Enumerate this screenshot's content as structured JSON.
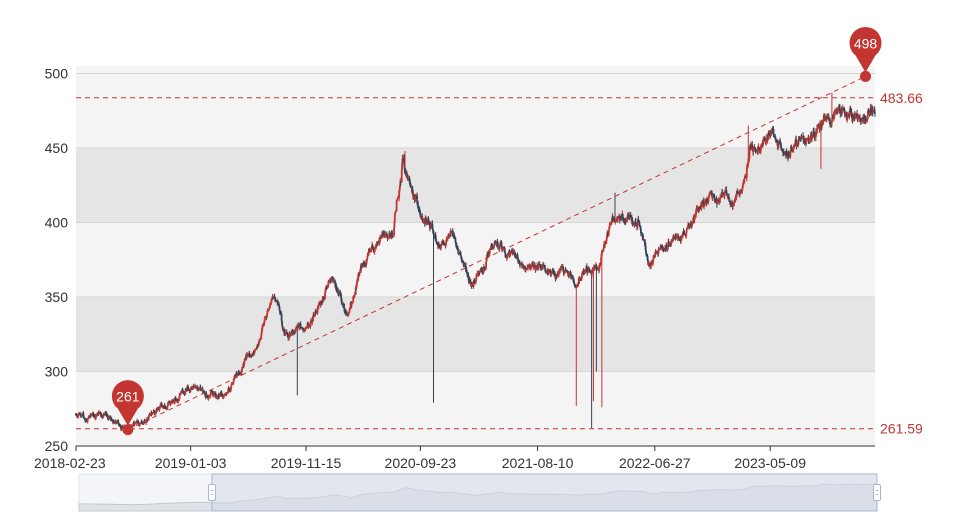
{
  "chart_data": {
    "type": "candlestick",
    "colors": {
      "up": "#c23531",
      "down": "#2f4554",
      "band_light": "#f4f4f4",
      "band_dark": "#e5e5e5",
      "markline": "#c23531",
      "axis": "#333333",
      "datazoom_fill": "#d3dbe7",
      "datazoom_border": "#a7b7cc"
    },
    "xaxis": {
      "ticks": [
        "2018-02-23",
        "2019-01-03",
        "2019-11-15",
        "2020-09-23",
        "2021-08-10",
        "2022-06-27",
        "2023-05-09"
      ],
      "start": "2018-02-23",
      "end": "2024-02-20"
    },
    "yaxis": {
      "min": 250,
      "max": 505,
      "ticks": [
        250,
        300,
        350,
        400,
        450,
        500
      ]
    },
    "key_points": [
      [
        "2018-02-23",
        272
      ],
      [
        "2018-05-15",
        269
      ],
      [
        "2018-07-15",
        263
      ],
      [
        "2018-08-20",
        266
      ],
      [
        "2018-10-25",
        278
      ],
      [
        "2018-12-15",
        285
      ],
      [
        "2019-01-20",
        290
      ],
      [
        "2019-02-20",
        283
      ],
      [
        "2019-04-10",
        282
      ],
      [
        "2019-05-15",
        300
      ],
      [
        "2019-07-01",
        318
      ],
      [
        "2019-08-20",
        350
      ],
      [
        "2019-09-20",
        325
      ],
      [
        "2019-11-15",
        330
      ],
      [
        "2019-12-25",
        345
      ],
      [
        "2020-01-25",
        365
      ],
      [
        "2020-03-10",
        335
      ],
      [
        "2020-04-15",
        370
      ],
      [
        "2020-05-25",
        385
      ],
      [
        "2020-07-10",
        395
      ],
      [
        "2020-08-05",
        440
      ],
      [
        "2020-08-20",
        425
      ],
      [
        "2020-09-15",
        410
      ],
      [
        "2020-10-15",
        400
      ],
      [
        "2020-11-15",
        385
      ],
      [
        "2020-12-15",
        390
      ],
      [
        "2021-01-15",
        375
      ],
      [
        "2021-02-15",
        358
      ],
      [
        "2021-03-15",
        372
      ],
      [
        "2021-04-20",
        390
      ],
      [
        "2021-05-20",
        375
      ],
      [
        "2021-06-20",
        375
      ],
      [
        "2021-07-20",
        370
      ],
      [
        "2021-08-25",
        372
      ],
      [
        "2021-09-25",
        365
      ],
      [
        "2021-10-25",
        368
      ],
      [
        "2021-11-25",
        362
      ],
      [
        "2021-12-25",
        368
      ],
      [
        "2022-01-25",
        370
      ],
      [
        "2022-02-25",
        395
      ],
      [
        "2022-03-15",
        405
      ],
      [
        "2022-04-15",
        402
      ],
      [
        "2022-05-15",
        400
      ],
      [
        "2022-06-15",
        372
      ],
      [
        "2022-07-15",
        388
      ],
      [
        "2022-08-15",
        388
      ],
      [
        "2022-09-20",
        392
      ],
      [
        "2022-10-20",
        408
      ],
      [
        "2022-11-20",
        412
      ],
      [
        "2022-12-20",
        418
      ],
      [
        "2023-01-20",
        413
      ],
      [
        "2023-02-20",
        420
      ],
      [
        "2023-03-15",
        450
      ],
      [
        "2023-04-15",
        453
      ],
      [
        "2023-05-15",
        458
      ],
      [
        "2023-06-15",
        450
      ],
      [
        "2023-07-10",
        452
      ],
      [
        "2023-08-05",
        455
      ],
      [
        "2023-09-05",
        458
      ],
      [
        "2023-10-01",
        472
      ],
      [
        "2023-10-20",
        465
      ],
      [
        "2023-11-15",
        470
      ],
      [
        "2023-12-15",
        472
      ],
      [
        "2024-01-15",
        468
      ],
      [
        "2024-02-20",
        478
      ]
    ],
    "spikes": [
      [
        "2020-10-29",
        "low",
        279
      ],
      [
        "2021-07-18",
        "low",
        343
      ],
      [
        "2021-11-24",
        "low",
        277
      ],
      [
        "2022-01-05",
        "low",
        262
      ],
      [
        "2022-01-10",
        "low",
        280
      ],
      [
        "2022-01-18",
        "low",
        300
      ],
      [
        "2022-02-02",
        "low",
        276
      ],
      [
        "2019-10-22",
        "low",
        284
      ],
      [
        "2022-09-10",
        "low",
        336
      ],
      [
        "2022-11-05",
        "low",
        366
      ],
      [
        "2023-09-25",
        "low",
        436
      ],
      [
        "2023-03-10",
        "high",
        465
      ],
      [
        "2023-06-10",
        "high",
        480
      ],
      [
        "2023-08-05",
        "high",
        495
      ],
      [
        "2023-10-25",
        "high",
        487
      ],
      [
        "2020-08-12",
        "high",
        448
      ],
      [
        "2019-08-18",
        "high",
        368
      ],
      [
        "2022-03-10",
        "high",
        420
      ]
    ],
    "mark_points": [
      {
        "label": "261",
        "date": "2018-07-15",
        "value": 261
      },
      {
        "label": "498",
        "date": "2024-01-25",
        "value": 498
      }
    ],
    "mark_lines": [
      {
        "label": "261.59",
        "value": 261.59
      },
      {
        "label": "483.66",
        "value": 483.66
      }
    ],
    "trend_line": {
      "from": {
        "date": "2018-07-15",
        "value": 261
      },
      "to": {
        "date": "2024-01-25",
        "value": 498
      }
    }
  }
}
